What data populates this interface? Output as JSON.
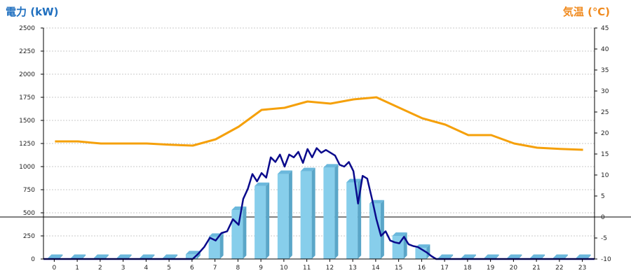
{
  "colors": {
    "power_title": "#1f6fbf",
    "temp_title": "#f08a1e",
    "bar_front": "#87ceeb",
    "bar_side": "#5aa6c8",
    "bar_top": "#6bb8dc",
    "power_line": "#0a0a8c",
    "temp_line": "#f5a00a",
    "grid": "#c8c8c8"
  },
  "chart_data": {
    "type": "bar",
    "title_left": "電力 (kW)",
    "title_right": "気温 (℃)",
    "categories": [
      "0",
      "1",
      "2",
      "3",
      "4",
      "5",
      "6",
      "7",
      "8",
      "9",
      "10",
      "11",
      "12",
      "13",
      "14",
      "15",
      "16",
      "17",
      "18",
      "19",
      "20",
      "21",
      "22",
      "23"
    ],
    "y_left": {
      "min": 0,
      "max": 2500,
      "ticks": [
        0,
        250,
        500,
        750,
        1000,
        1250,
        1500,
        1750,
        2000,
        2250,
        2500
      ]
    },
    "y_right": {
      "min": -10,
      "max": 45,
      "ticks": [
        -10,
        -5,
        0,
        5,
        10,
        15,
        20,
        25,
        30,
        35,
        40,
        45
      ]
    },
    "grid": true,
    "reference_line_right": 0,
    "series": [
      {
        "type": "bar",
        "axis": "left",
        "values": [
          0,
          0,
          0,
          0,
          0,
          0,
          50,
          240,
          530,
          790,
          920,
          950,
          990,
          830,
          600,
          250,
          120,
          0,
          0,
          0,
          0,
          0,
          0,
          0
        ]
      },
      {
        "type": "line",
        "axis": "left",
        "x": [
          6,
          6.25,
          6.5,
          6.75,
          7,
          7.25,
          7.5,
          7.75,
          8,
          8.2,
          8.4,
          8.6,
          8.8,
          9,
          9.2,
          9.4,
          9.6,
          9.8,
          10,
          10.2,
          10.4,
          10.6,
          10.8,
          11,
          11.2,
          11.4,
          11.6,
          11.8,
          12,
          12.2,
          12.4,
          12.6,
          12.8,
          13,
          13.2,
          13.4,
          13.6,
          13.8,
          14,
          14.2,
          14.4,
          14.6,
          14.8,
          15,
          15.2,
          15.4,
          15.6,
          15.8,
          16,
          16.2,
          16.4,
          16.6
        ],
        "values": [
          0,
          60,
          130,
          230,
          200,
          280,
          300,
          430,
          370,
          650,
          760,
          920,
          840,
          930,
          880,
          1100,
          1050,
          1130,
          1000,
          1130,
          1100,
          1160,
          1040,
          1190,
          1100,
          1200,
          1150,
          1180,
          1150,
          1120,
          1020,
          1000,
          1050,
          950,
          600,
          900,
          870,
          660,
          430,
          250,
          300,
          200,
          180,
          170,
          240,
          160,
          140,
          130,
          100,
          70,
          30,
          0
        ]
      },
      {
        "type": "line",
        "axis": "right",
        "x": [
          0,
          1,
          2,
          3,
          4,
          5,
          6,
          7,
          8,
          9,
          10,
          11,
          12,
          13,
          14,
          15,
          16,
          17,
          18,
          19,
          20,
          21,
          22,
          23
        ],
        "values": [
          18,
          18,
          17.5,
          17.5,
          17.5,
          17.2,
          17,
          18.5,
          21.5,
          25.5,
          26,
          27.5,
          27,
          28,
          28.5,
          26,
          23.5,
          22,
          19.5,
          19.5,
          17.5,
          16.5,
          16.2,
          16
        ]
      }
    ]
  }
}
